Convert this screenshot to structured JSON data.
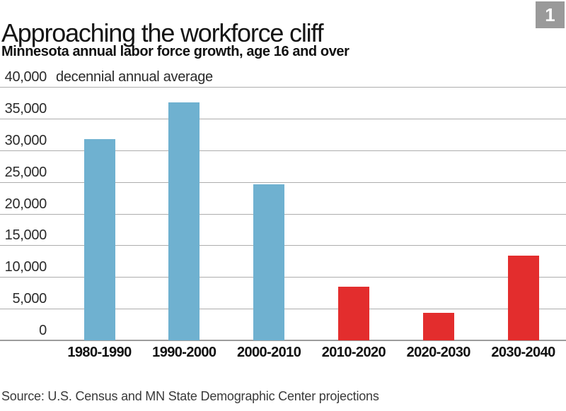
{
  "header": {
    "title": "Approaching the workforce cliff",
    "subtitle": "Minnesota annual labor force growth, age 16 and over",
    "figure_number": "1"
  },
  "chart_data": {
    "type": "bar",
    "title": "Approaching the workforce cliff",
    "subtitle": "Minnesota annual labor force growth, age 16 and over",
    "annotation": "decennial annual average",
    "categories": [
      "1980-1990",
      "1990-2000",
      "2000-2010",
      "2010-2020",
      "2020-2030",
      "2030-2040"
    ],
    "values": [
      31700,
      37500,
      24600,
      8500,
      4300,
      13400
    ],
    "bar_colors": [
      "#6FB1D0",
      "#6FB1D0",
      "#6FB1D0",
      "#E32D2D",
      "#E32D2D",
      "#E32D2D"
    ],
    "ylim": [
      0,
      40000
    ],
    "ytick_interval": 5000,
    "ytick_labels": [
      "40,000",
      "35,000",
      "30,000",
      "25,000",
      "20,000",
      "15,000",
      "10,000",
      "5,000",
      "0"
    ],
    "grid": true,
    "legend": "none",
    "xlabel": "",
    "ylabel": ""
  },
  "footer": {
    "source": "Source: U.S. Census and MN State Demographic Center projections"
  },
  "colors": {
    "historical_bar": "#6FB1D0",
    "projected_bar": "#E32D2D",
    "badge_bg": "#9A9A9A",
    "badge_text": "#FFFFFF",
    "gridline": "#ADADAD",
    "baseline": "#9C9C9C"
  }
}
